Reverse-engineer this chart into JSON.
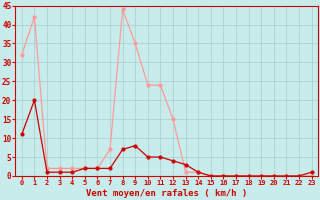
{
  "x": [
    0,
    1,
    2,
    3,
    4,
    5,
    6,
    7,
    8,
    9,
    10,
    11,
    12,
    13,
    14,
    15,
    16,
    17,
    18,
    19,
    20,
    21,
    22,
    23
  ],
  "y_light": [
    32,
    42,
    2,
    2,
    2,
    2,
    2,
    7,
    44,
    35,
    24,
    24,
    15,
    1,
    1,
    0,
    0,
    0,
    0,
    0,
    0,
    0,
    0,
    0
  ],
  "y_dark": [
    11,
    20,
    1,
    1,
    1,
    2,
    2,
    2,
    7,
    8,
    5,
    5,
    4,
    3,
    1,
    0,
    0,
    0,
    0,
    0,
    0,
    0,
    0,
    1
  ],
  "color_light": "#FF9999",
  "color_dark": "#CC0000",
  "bg_color": "#C8ECEC",
  "grid_color": "#AACCCC",
  "axis_color": "#CC0000",
  "text_color": "#CC0000",
  "xlabel": "Vent moyen/en rafales ( km/h )",
  "ylim": [
    0,
    45
  ],
  "yticks": [
    0,
    5,
    10,
    15,
    20,
    25,
    30,
    35,
    40,
    45
  ]
}
